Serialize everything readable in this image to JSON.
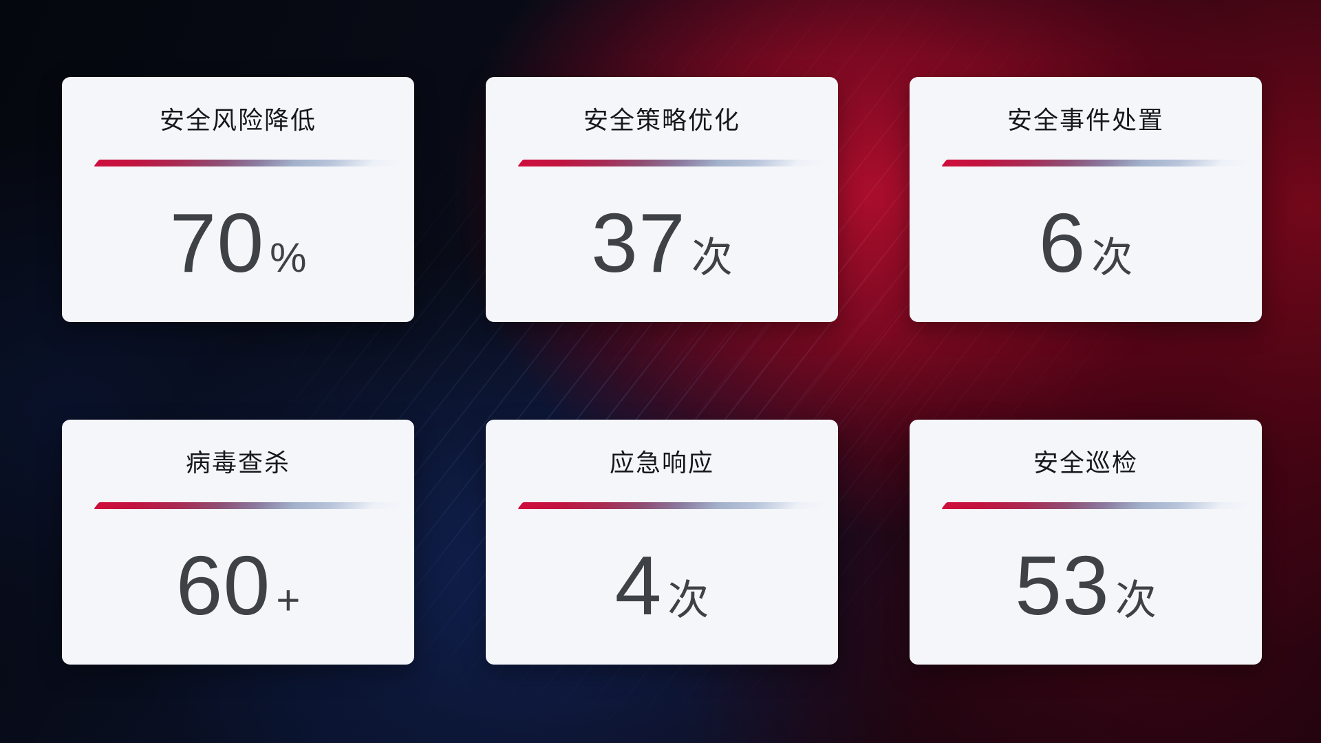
{
  "cards": [
    {
      "title": "安全风险降低",
      "value": "70",
      "unit": "%"
    },
    {
      "title": "安全策略优化",
      "value": "37",
      "unit": "次"
    },
    {
      "title": "安全事件处置",
      "value": "6",
      "unit": "次"
    },
    {
      "title": "病毒查杀",
      "value": "60",
      "unit": "+"
    },
    {
      "title": "应急响应",
      "value": "4",
      "unit": "次"
    },
    {
      "title": "安全巡检",
      "value": "53",
      "unit": "次"
    }
  ],
  "colors": {
    "card_background": "#f5f6fa",
    "title_text": "#17181c",
    "value_text": "#3e4146",
    "divider_gradient_start": "#ce0e3c",
    "divider_gradient_mid": "#8b7a9f",
    "divider_gradient_end": "#b7c4da",
    "background_red_glow": "#b20e2e",
    "background_blue_glow": "#112459",
    "background_base": "#06080f"
  }
}
